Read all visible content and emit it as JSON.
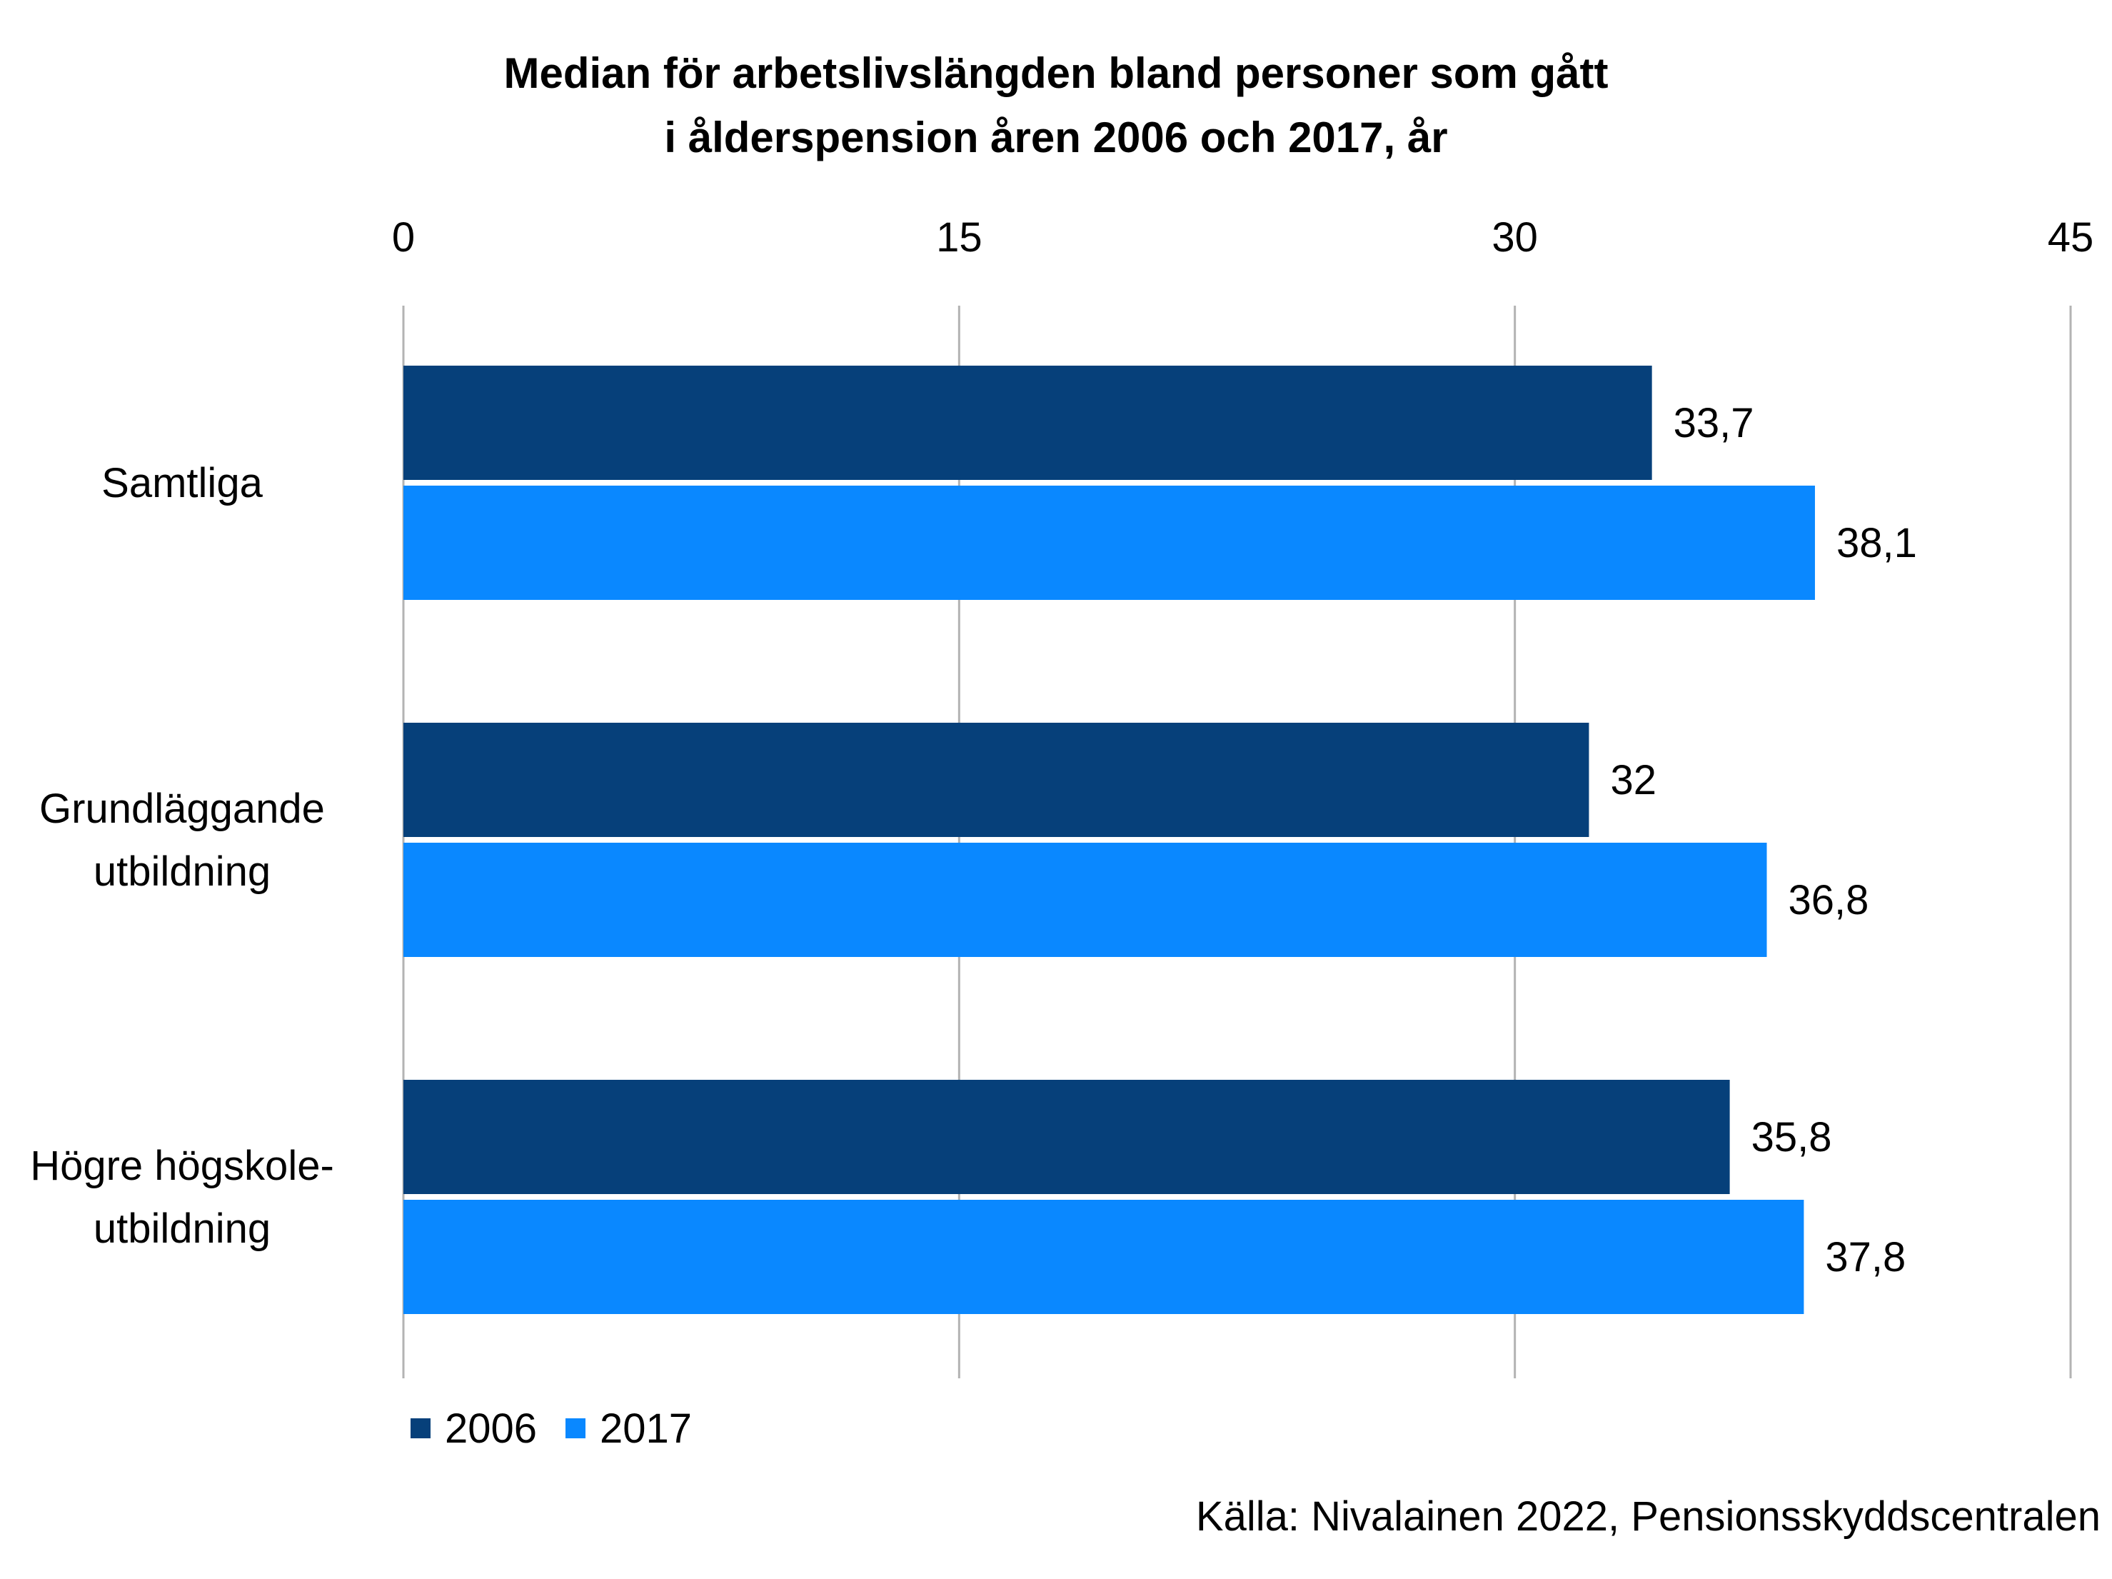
{
  "chart_data": {
    "type": "bar",
    "orientation": "horizontal",
    "title_lines": [
      "Median för arbetslivslängden bland personer som gått",
      "i ålderspension åren 2006 och 2017, år"
    ],
    "categories": [
      [
        "Samtliga"
      ],
      [
        "Grundläggande",
        "utbildning"
      ],
      [
        "Högre högskole-",
        "utbildning"
      ]
    ],
    "series": [
      {
        "name": "2006",
        "color": "#06407A",
        "values": [
          33.7,
          32,
          35.8
        ],
        "labels": [
          "33,7",
          "32",
          "35,8"
        ]
      },
      {
        "name": "2017",
        "color": "#0A88FF",
        "values": [
          38.1,
          36.8,
          37.8
        ],
        "labels": [
          "38,1",
          "36,8",
          "37,8"
        ]
      }
    ],
    "xlim": [
      0,
      45
    ],
    "xticks": [
      0,
      15,
      30,
      45
    ],
    "tick_labels": [
      "0",
      "15",
      "30",
      "45"
    ],
    "axis_position": "top",
    "grid": true,
    "legend_position": "bottom-left"
  },
  "source": "Källa: Nivalainen 2022, Pensionsskyddscentralen"
}
